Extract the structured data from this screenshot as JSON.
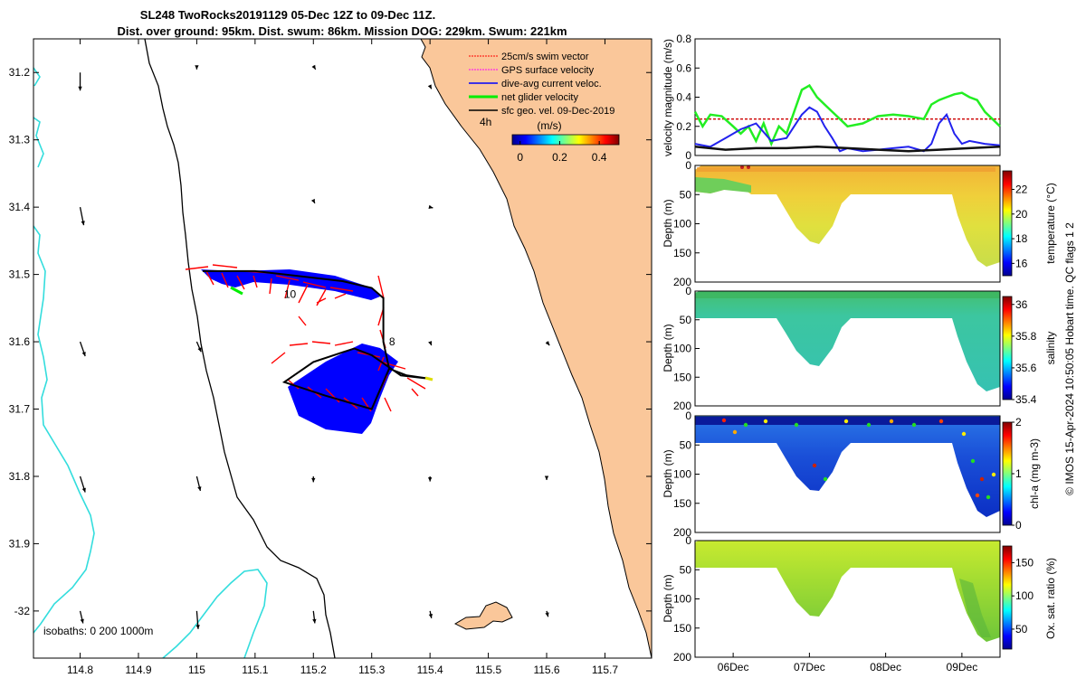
{
  "title": {
    "line1": "SL248 TwoRocks20191129 05-Dec 12Z to 09-Dec 11Z.",
    "line2": "Dist. over ground: 95km. Dist. swum: 86km. Mission DOG: 229km. Swum: 221km"
  },
  "colors": {
    "land": "#fac79a",
    "isobath": "#33dddd",
    "swim": "#ff0000",
    "gps": "#ff00ff",
    "current": "#0000ff",
    "net": "#00ee00",
    "sfc": "#000000",
    "threshold": "#cc0000"
  },
  "chart_data": [
    {
      "type": "map",
      "xlabel": "",
      "ylabel": "",
      "xlim": [
        114.72,
        115.78
      ],
      "ylim": [
        -32.07,
        -31.15
      ],
      "xticks": [
        "114.8",
        "114.9",
        "115",
        "115.1",
        "115.2",
        "115.3",
        "115.4",
        "115.5",
        "115.6",
        "115.7"
      ],
      "xtick_values": [
        114.8,
        114.9,
        115.0,
        115.1,
        115.2,
        115.3,
        115.4,
        115.5,
        115.6,
        115.7
      ],
      "yticks": [
        "31.2",
        "31.3",
        "31.4",
        "31.5",
        "31.6",
        "31.7",
        "31.8",
        "31.9",
        "-32"
      ],
      "ytick_values": [
        -31.2,
        -31.3,
        -31.4,
        -31.5,
        -31.6,
        -31.7,
        -31.8,
        -31.9,
        -32.0
      ],
      "legend": {
        "entries": [
          "25cm/s swim vector",
          "GPS surface velocity",
          "dive-avg current veloc.",
          "net glider velocity",
          "sfc geo. vel. 09-Dec-2019"
        ],
        "placement": "top-right"
      },
      "colorbar": {
        "label": "(m/s)",
        "ticks": [
          "0",
          "0.2",
          "0.4"
        ],
        "tick_values": [
          0,
          0.2,
          0.4
        ],
        "range": [
          -0.04,
          0.5
        ],
        "time_marker": "4h"
      },
      "isobaths_label": "isobaths: 0   200  1000m",
      "track": [
        [
          115.01,
          -31.495
        ],
        [
          115.1,
          -31.495
        ],
        [
          115.2,
          -31.505
        ],
        [
          115.25,
          -31.51
        ],
        [
          115.3,
          -31.52
        ],
        [
          115.32,
          -31.535
        ],
        [
          115.32,
          -31.6
        ],
        [
          115.33,
          -31.64
        ],
        [
          115.36,
          -31.65
        ],
        [
          115.4,
          -31.655
        ],
        [
          115.35,
          -31.65
        ],
        [
          115.3,
          -31.62
        ],
        [
          115.27,
          -31.61
        ],
        [
          115.2,
          -31.63
        ],
        [
          115.15,
          -31.66
        ],
        [
          115.22,
          -31.68
        ],
        [
          115.3,
          -31.7
        ],
        [
          115.33,
          -31.64
        ]
      ],
      "labels": [
        {
          "text": "10",
          "lon": 115.16,
          "lat": -31.535
        },
        {
          "text": "8",
          "lon": 115.335,
          "lat": -31.605
        }
      ],
      "sfc_vectors": [
        {
          "lon": 114.8,
          "lat": -31.2,
          "u": 0.0,
          "v": -0.25
        },
        {
          "lon": 115.0,
          "lat": -31.19,
          "u": 0.0,
          "v": -0.05
        },
        {
          "lon": 115.2,
          "lat": -31.19,
          "u": 0.03,
          "v": -0.05
        },
        {
          "lon": 115.4,
          "lat": -31.22,
          "u": 0.02,
          "v": -0.04
        },
        {
          "lon": 114.8,
          "lat": -31.4,
          "u": 0.05,
          "v": -0.25
        },
        {
          "lon": 115.2,
          "lat": -31.39,
          "u": 0.02,
          "v": -0.04
        },
        {
          "lon": 115.4,
          "lat": -31.4,
          "u": 0.04,
          "v": -0.01
        },
        {
          "lon": 114.8,
          "lat": -31.6,
          "u": 0.07,
          "v": -0.2
        },
        {
          "lon": 115.0,
          "lat": -31.6,
          "u": 0.06,
          "v": -0.14
        },
        {
          "lon": 115.4,
          "lat": -31.6,
          "u": 0.02,
          "v": -0.05
        },
        {
          "lon": 115.6,
          "lat": -31.6,
          "u": 0.04,
          "v": -0.05
        },
        {
          "lon": 114.8,
          "lat": -31.8,
          "u": 0.07,
          "v": -0.22
        },
        {
          "lon": 115.0,
          "lat": -31.8,
          "u": 0.05,
          "v": -0.2
        },
        {
          "lon": 115.2,
          "lat": -31.8,
          "u": 0.0,
          "v": -0.08
        },
        {
          "lon": 115.4,
          "lat": -31.8,
          "u": 0.0,
          "v": -0.07
        },
        {
          "lon": 115.6,
          "lat": -31.8,
          "u": 0.0,
          "v": -0.05
        },
        {
          "lon": 114.8,
          "lat": -32.0,
          "u": 0.04,
          "v": -0.17
        },
        {
          "lon": 115.0,
          "lat": -32.0,
          "u": 0.02,
          "v": -0.25
        },
        {
          "lon": 115.2,
          "lat": -32.0,
          "u": 0.02,
          "v": -0.17
        },
        {
          "lon": 115.4,
          "lat": -32.0,
          "u": 0.02,
          "v": -0.1
        },
        {
          "lon": 115.6,
          "lat": -32.0,
          "u": 0.02,
          "v": -0.08
        }
      ]
    },
    {
      "type": "line",
      "ylabel": "velocity magnitude (m/s)",
      "ylim": [
        0,
        0.8
      ],
      "yticks": [
        "0",
        "0.2",
        "0.4",
        "0.6",
        "0.8"
      ],
      "ytick_values": [
        0,
        0.2,
        0.4,
        0.6,
        0.8
      ],
      "xlim": [
        0,
        4
      ],
      "series": [
        {
          "name": "net glider velocity",
          "color": "green",
          "x": [
            0,
            0.1,
            0.2,
            0.35,
            0.5,
            0.6,
            0.7,
            0.8,
            0.9,
            1.0,
            1.1,
            1.2,
            1.3,
            1.4,
            1.5,
            1.6,
            1.7,
            1.8,
            1.9,
            2.0,
            2.2,
            2.4,
            2.6,
            2.8,
            3.0,
            3.1,
            3.2,
            3.3,
            3.4,
            3.5,
            3.6,
            3.7,
            3.8,
            3.9,
            4.0
          ],
          "values": [
            0.3,
            0.2,
            0.28,
            0.27,
            0.2,
            0.15,
            0.2,
            0.1,
            0.22,
            0.08,
            0.2,
            0.15,
            0.3,
            0.45,
            0.48,
            0.4,
            0.35,
            0.3,
            0.25,
            0.2,
            0.22,
            0.27,
            0.28,
            0.27,
            0.25,
            0.35,
            0.38,
            0.4,
            0.42,
            0.43,
            0.4,
            0.38,
            0.3,
            0.25,
            0.2
          ]
        },
        {
          "name": "dive-avg current",
          "color": "blue",
          "x": [
            0,
            0.2,
            0.4,
            0.6,
            0.8,
            1.0,
            1.2,
            1.3,
            1.4,
            1.5,
            1.6,
            1.7,
            1.8,
            1.9,
            2.0,
            2.2,
            2.4,
            2.6,
            2.8,
            3.0,
            3.1,
            3.2,
            3.3,
            3.4,
            3.5,
            3.6,
            3.8,
            4.0
          ],
          "values": [
            0.08,
            0.06,
            0.12,
            0.18,
            0.22,
            0.1,
            0.12,
            0.2,
            0.28,
            0.33,
            0.3,
            0.2,
            0.12,
            0.03,
            0.05,
            0.03,
            0.04,
            0.05,
            0.06,
            0.03,
            0.08,
            0.22,
            0.28,
            0.15,
            0.08,
            0.1,
            0.08,
            0.07
          ]
        },
        {
          "name": "sfc geo velocity",
          "color": "black",
          "x": [
            0,
            0.4,
            0.8,
            1.2,
            1.6,
            2.0,
            2.4,
            2.8,
            3.2,
            3.6,
            4.0
          ],
          "values": [
            0.06,
            0.04,
            0.05,
            0.05,
            0.06,
            0.05,
            0.04,
            0.03,
            0.04,
            0.05,
            0.06
          ]
        },
        {
          "name": "25cm/s threshold",
          "color": "red",
          "x": [
            0,
            4
          ],
          "values": [
            0.25,
            0.25
          ]
        }
      ]
    },
    {
      "type": "heatmap",
      "ylabel": "Depth (m)",
      "variable": "temperature (°C)",
      "ylim": [
        200,
        0
      ],
      "yticks": [
        "0",
        "50",
        "100",
        "150",
        "200"
      ],
      "ytick_values": [
        0,
        50,
        100,
        150,
        200
      ],
      "colorbar_ticks": [
        "16",
        "18",
        "20",
        "22"
      ],
      "colorbar_tick_values": [
        16,
        18,
        20,
        22
      ],
      "clim": [
        15,
        23.5
      ]
    },
    {
      "type": "heatmap",
      "ylabel": "Depth (m)",
      "variable": "salinity",
      "ylim": [
        200,
        0
      ],
      "yticks": [
        "0",
        "50",
        "100",
        "150",
        "200"
      ],
      "ytick_values": [
        0,
        50,
        100,
        150,
        200
      ],
      "colorbar_ticks": [
        "35.4",
        "35.6",
        "35.8",
        "36"
      ],
      "colorbar_tick_values": [
        35.4,
        35.6,
        35.8,
        36.0
      ],
      "clim": [
        35.4,
        36.05
      ]
    },
    {
      "type": "heatmap",
      "ylabel": "Depth (m)",
      "variable": "chl-a (mg m-3)",
      "ylim": [
        200,
        0
      ],
      "yticks": [
        "0",
        "50",
        "100",
        "150",
        "200"
      ],
      "ytick_values": [
        0,
        50,
        100,
        150,
        200
      ],
      "colorbar_ticks": [
        "0",
        "1",
        "2"
      ],
      "colorbar_tick_values": [
        0,
        1,
        2
      ],
      "clim": [
        0,
        2
      ]
    },
    {
      "type": "heatmap",
      "ylabel": "Depth (m)",
      "variable": "Ox. sat. ratio (%)",
      "ylim": [
        200,
        0
      ],
      "yticks": [
        "0",
        "50",
        "100",
        "150",
        "200"
      ],
      "ytick_values": [
        0,
        50,
        100,
        150,
        200
      ],
      "colorbar_ticks": [
        "50",
        "100",
        "150"
      ],
      "colorbar_tick_values": [
        50,
        100,
        150
      ],
      "clim": [
        20,
        175
      ],
      "xticks": [
        "06Dec",
        "07Dec",
        "08Dec",
        "09Dec"
      ],
      "xtick_values": [
        0.5,
        1.5,
        2.5,
        3.5
      ]
    }
  ],
  "footer": "© IMOS 15-Apr-2024 10:50:05 Hobart time. QC flags 1  2"
}
